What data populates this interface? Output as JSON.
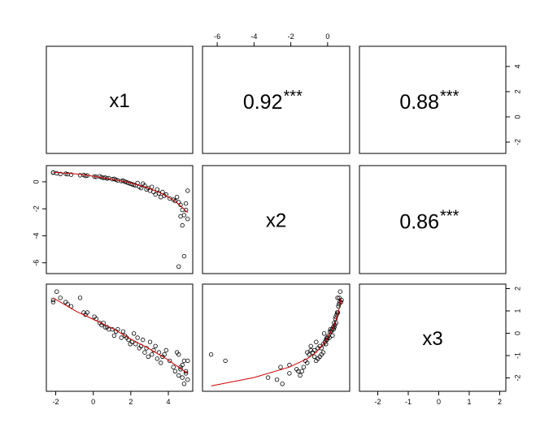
{
  "chart_data": {
    "type": "scatter",
    "variables": [
      "x1",
      "x2",
      "x3"
    ],
    "correlations": [
      {
        "row": 0,
        "col": 1,
        "value": "0.92",
        "stars": "***"
      },
      {
        "row": 0,
        "col": 2,
        "value": "0.88",
        "stars": "***"
      },
      {
        "row": 1,
        "col": 2,
        "value": "0.86",
        "stars": "***"
      }
    ],
    "axes": {
      "x1": {
        "range": [
          -2.5,
          5.3
        ],
        "ticks": [
          -2,
          0,
          2,
          4
        ],
        "tick_labels": [
          "-2",
          "0",
          "2",
          "4"
        ]
      },
      "x2": {
        "range": [
          -6.8,
          1.2
        ],
        "ticks": [
          -6,
          -4,
          -2,
          0
        ],
        "tick_labels": [
          "-6",
          "-4",
          "-2",
          "0"
        ]
      },
      "x3": {
        "range": [
          -2.6,
          2.2
        ],
        "ticks": [
          -2,
          -1,
          0,
          1,
          2
        ],
        "tick_labels": [
          "-2",
          "-1",
          "0",
          "1",
          "2"
        ],
        "panel_x_range": [
          -2.6,
          2.2
        ],
        "panel_y_range": [
          -2.9,
          5.6
        ],
        "panel_y_ticks": [
          -2,
          0,
          2,
          4
        ],
        "panel_y_tick_labels": [
          "-2",
          "0",
          "2",
          "4"
        ]
      }
    },
    "points": {
      "x1": [
        -2.3,
        -2.3,
        -2.1,
        -1.9,
        -1.6,
        -1.5,
        -1.3,
        -0.8,
        -0.6,
        -0.5,
        -0.4,
        0.0,
        0.1,
        0.3,
        0.4,
        0.5,
        0.6,
        0.7,
        0.8,
        1.0,
        1.1,
        1.2,
        1.3,
        1.5,
        1.6,
        1.7,
        1.8,
        1.9,
        2.0,
        2.1,
        2.2,
        2.3,
        2.4,
        2.5,
        2.6,
        2.7,
        2.8,
        2.9,
        3.0,
        3.1,
        3.2,
        3.3,
        3.4,
        3.5,
        3.6,
        3.7,
        3.8,
        3.9,
        4.0,
        4.2,
        4.4,
        4.5,
        4.6,
        4.7,
        4.8,
        4.9,
        5.0,
        5.1,
        5.2,
        5.2,
        4.9,
        4.7,
        5.0,
        4.8,
        5.1
      ],
      "x2": [
        0.9,
        0.92,
        0.85,
        0.8,
        0.82,
        0.78,
        0.75,
        0.7,
        0.72,
        0.65,
        0.68,
        0.6,
        0.58,
        0.62,
        0.55,
        0.5,
        0.52,
        0.45,
        0.48,
        0.4,
        0.42,
        0.35,
        0.3,
        0.25,
        0.28,
        0.2,
        0.15,
        0.1,
        0.05,
        0.0,
        -0.05,
        -0.1,
        0.1,
        -0.2,
        -0.3,
        0.05,
        -0.1,
        -0.4,
        -0.3,
        -0.5,
        -0.2,
        -0.6,
        -0.8,
        -0.4,
        -0.7,
        -1.0,
        -0.6,
        -0.9,
        -0.8,
        -1.1,
        -1.2,
        -1.3,
        -1.0,
        -1.4,
        -1.6,
        -2.0,
        -2.4,
        -2.0,
        -0.5,
        -2.7,
        -3.2,
        -6.4,
        -5.6,
        -2.5,
        -1.5
      ],
      "x3": [
        1.5,
        1.6,
        2.0,
        1.7,
        1.5,
        1.4,
        1.3,
        1.7,
        1.0,
        0.9,
        1.0,
        0.8,
        0.7,
        0.5,
        0.4,
        0.5,
        0.3,
        0.3,
        0.2,
        0.2,
        -0.1,
        0.1,
        0.2,
        -0.2,
        0.1,
        -0.1,
        -0.2,
        -0.3,
        -0.5,
        -0.4,
        0.0,
        -0.5,
        -0.2,
        -0.7,
        -0.6,
        -0.3,
        -0.9,
        -0.7,
        -1.1,
        -0.4,
        -1.0,
        -0.8,
        -0.6,
        -1.2,
        -0.9,
        -1.4,
        -1.1,
        -1.0,
        -0.8,
        -1.3,
        -1.6,
        -1.8,
        -0.9,
        -2.0,
        -1.7,
        -1.5,
        -2.4,
        -1.9,
        -1.3,
        -2.2,
        -2.1,
        -1.0,
        -1.3,
        -1.6,
        -1.8
      ]
    },
    "smooth_lines": {
      "x2_vs_x1": {
        "x": [
          -2.3,
          -1,
          0,
          1,
          2,
          3,
          3.8,
          4.5,
          5.2
        ],
        "y": [
          0.92,
          0.8,
          0.62,
          0.4,
          0.12,
          -0.28,
          -0.75,
          -1.3,
          -2.2
        ]
      },
      "x3_vs_x1": {
        "x": [
          -2.3,
          -1,
          0,
          1,
          2,
          3,
          4,
          5.2
        ],
        "y": [
          1.7,
          1.05,
          0.65,
          0.25,
          -0.25,
          -0.7,
          -1.2,
          -1.9
        ]
      },
      "x3_vs_x2": {
        "x": [
          -6.4,
          -4,
          -2,
          -1,
          -0.5,
          0,
          0.4,
          0.6,
          0.8,
          0.9
        ],
        "y": [
          -2.5,
          -2.1,
          -1.6,
          -1.2,
          -0.9,
          -0.4,
          0.2,
          0.6,
          1.2,
          1.7
        ]
      }
    },
    "title": "",
    "xlabel": "",
    "ylabel": "",
    "grid": false,
    "legend": "none"
  }
}
